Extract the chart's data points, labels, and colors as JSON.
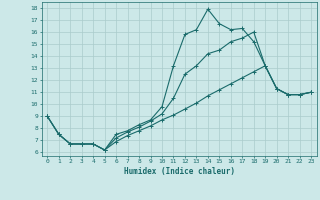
{
  "xlabel": "Humidex (Indice chaleur)",
  "bg_color": "#cce8e8",
  "grid_color": "#aacccc",
  "line_color": "#1a6b6b",
  "xlim": [
    -0.5,
    23.5
  ],
  "ylim": [
    5.7,
    18.5
  ],
  "xticks": [
    0,
    1,
    2,
    3,
    4,
    5,
    6,
    7,
    8,
    9,
    10,
    11,
    12,
    13,
    14,
    15,
    16,
    17,
    18,
    19,
    20,
    21,
    22,
    23
  ],
  "yticks": [
    6,
    7,
    8,
    9,
    10,
    11,
    12,
    13,
    14,
    15,
    16,
    17,
    18
  ],
  "line1_x": [
    0,
    1,
    2,
    3,
    4,
    5,
    6,
    7,
    8,
    9,
    10,
    11,
    12,
    13,
    14,
    15,
    16,
    17,
    18,
    19,
    20,
    21,
    22,
    23
  ],
  "line1_y": [
    9.0,
    7.5,
    6.7,
    6.7,
    6.7,
    6.2,
    7.5,
    7.8,
    8.3,
    8.7,
    9.8,
    13.2,
    15.8,
    16.2,
    17.9,
    16.7,
    16.2,
    16.3,
    15.2,
    13.2,
    11.3,
    10.8,
    10.8,
    11.0
  ],
  "line2_x": [
    0,
    1,
    2,
    3,
    4,
    5,
    6,
    7,
    8,
    9,
    10,
    11,
    12,
    13,
    14,
    15,
    16,
    17,
    18,
    19,
    20,
    21,
    22,
    23
  ],
  "line2_y": [
    9.0,
    7.5,
    6.7,
    6.7,
    6.7,
    6.2,
    7.2,
    7.7,
    8.1,
    8.6,
    9.2,
    10.5,
    12.5,
    13.2,
    14.2,
    14.5,
    15.2,
    15.5,
    16.0,
    13.2,
    11.3,
    10.8,
    10.8,
    11.0
  ],
  "line3_x": [
    0,
    1,
    2,
    3,
    4,
    5,
    6,
    7,
    8,
    9,
    10,
    11,
    12,
    13,
    14,
    15,
    16,
    17,
    18,
    19,
    20,
    21,
    22,
    23
  ],
  "line3_y": [
    9.0,
    7.5,
    6.7,
    6.7,
    6.7,
    6.2,
    6.9,
    7.4,
    7.8,
    8.2,
    8.7,
    9.1,
    9.6,
    10.1,
    10.7,
    11.2,
    11.7,
    12.2,
    12.7,
    13.2,
    11.3,
    10.8,
    10.8,
    11.0
  ]
}
